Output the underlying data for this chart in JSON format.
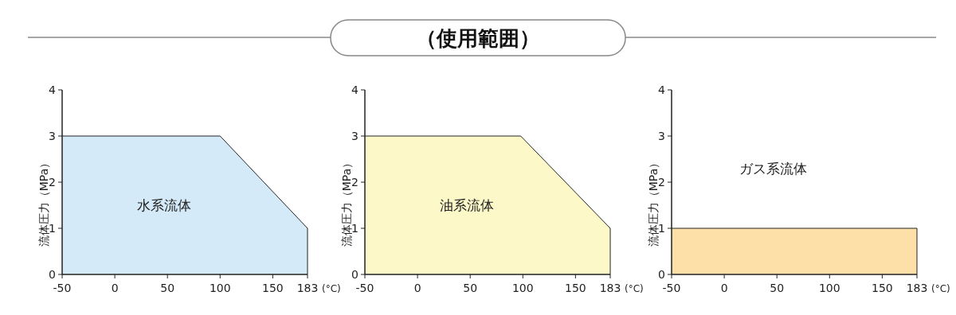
{
  "chart_data": [
    {
      "type": "area",
      "xlabel": "(°C)",
      "ylabel": "流体圧力（MPa）",
      "xlim": [
        -50,
        183
      ],
      "ylim": [
        0,
        4
      ],
      "xticks": [
        -50,
        0,
        50,
        100,
        150,
        183
      ],
      "yticks": [
        0,
        1,
        2,
        3,
        4
      ],
      "grid": false,
      "legend": false,
      "series": [
        {
          "name": "水系流体",
          "color": "#d5eaf8",
          "x": [
            -50,
            100,
            183
          ],
          "values": [
            3,
            3,
            1
          ]
        }
      ]
    },
    {
      "type": "area",
      "title": "（使用範囲）",
      "xlabel": "(°C)",
      "ylabel": "流体圧力（MPa）",
      "xlim": [
        -50,
        183
      ],
      "ylim": [
        0,
        4
      ],
      "xticks": [
        -50,
        0,
        50,
        100,
        150,
        183
      ],
      "yticks": [
        0,
        1,
        2,
        3,
        4
      ],
      "grid": false,
      "legend": false,
      "series": [
        {
          "name": "油系流体",
          "color": "#fdf8c8",
          "x": [
            -50,
            98,
            183
          ],
          "values": [
            3,
            3,
            1
          ]
        }
      ]
    },
    {
      "type": "area",
      "xlabel": "(°C)",
      "ylabel": "流体圧力（MPa）",
      "xlim": [
        -50,
        183
      ],
      "ylim": [
        0,
        4
      ],
      "xticks": [
        -50,
        0,
        50,
        100,
        150,
        183
      ],
      "yticks": [
        0,
        1,
        2,
        3,
        4
      ],
      "grid": false,
      "legend": false,
      "series": [
        {
          "name": "ガス系流体",
          "color": "#fde0a8",
          "x": [
            -50,
            183
          ],
          "values": [
            1,
            1
          ]
        }
      ]
    }
  ]
}
